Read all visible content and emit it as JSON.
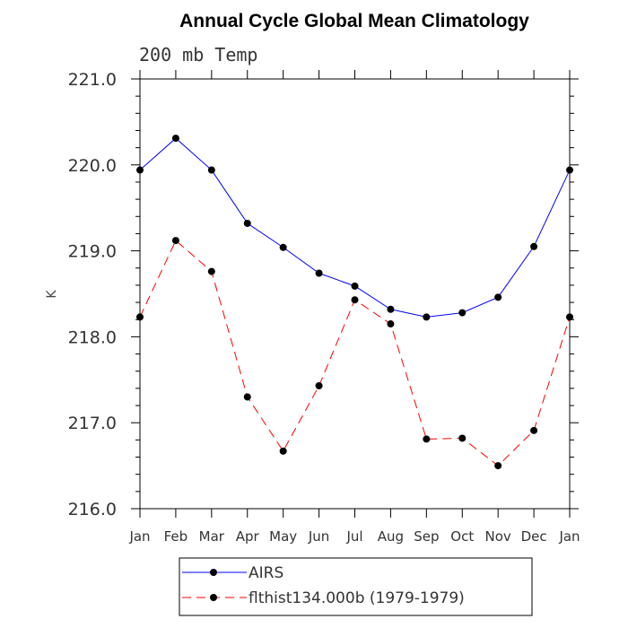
{
  "chart_data": {
    "type": "line",
    "title": "Annual Cycle Global Mean Climatology",
    "subtitle": "200 mb Temp",
    "ylabel": "K",
    "xlabel": "",
    "categories": [
      "Jan",
      "Feb",
      "Mar",
      "Apr",
      "May",
      "Jun",
      "Jul",
      "Aug",
      "Sep",
      "Oct",
      "Nov",
      "Dec",
      "Jan"
    ],
    "ylim": [
      216.0,
      221.0
    ],
    "yticks": [
      "216.0",
      "217.0",
      "218.0",
      "219.0",
      "220.0",
      "221.0"
    ],
    "grid": false,
    "legend_position": "bottom",
    "series": [
      {
        "name": "AIRS",
        "color": "#0000ff",
        "line_style": "solid",
        "values": [
          219.94,
          220.31,
          219.94,
          219.32,
          219.04,
          218.74,
          218.59,
          218.32,
          218.23,
          218.28,
          218.46,
          219.05,
          219.94
        ]
      },
      {
        "name": "flthist134.000b (1979-1979)",
        "color": "#ff0000",
        "line_style": "dashed",
        "values": [
          218.23,
          219.12,
          218.76,
          217.3,
          216.67,
          217.43,
          218.43,
          218.15,
          216.81,
          216.82,
          216.5,
          216.91,
          218.23
        ]
      }
    ]
  }
}
